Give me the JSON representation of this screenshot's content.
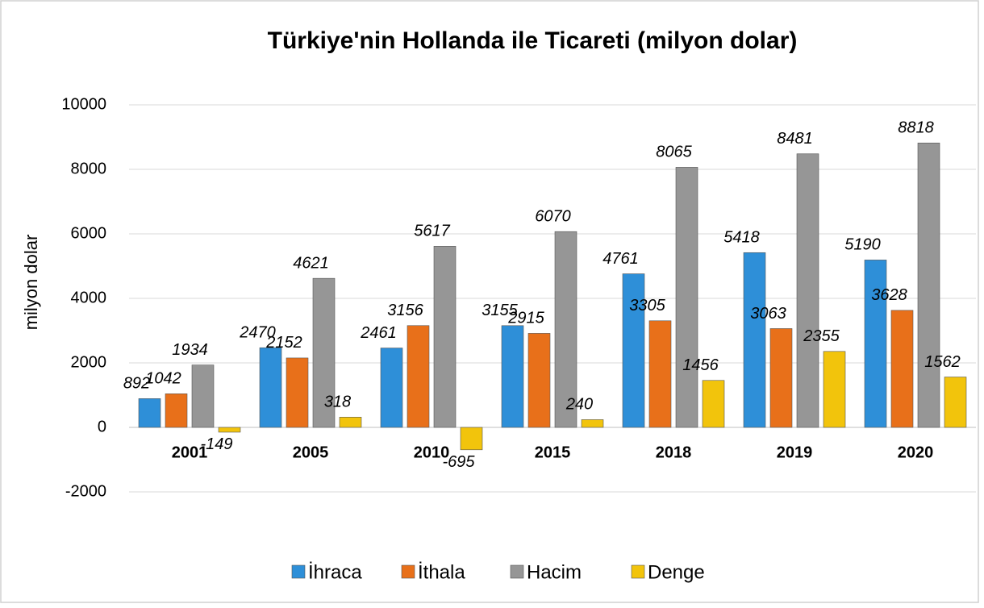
{
  "chart_data": {
    "type": "bar",
    "title": "Türkiye'nin Hollanda ile Ticareti (milyon dolar)",
    "y_axis_label": "milyon dolar",
    "categories": [
      "2001",
      "2005",
      "2010",
      "2015",
      "2018",
      "2019",
      "2020"
    ],
    "series": [
      {
        "name": "İhraca",
        "color": "#2e8fd8",
        "values": [
          892,
          2470,
          2461,
          3155,
          4761,
          5418,
          5190
        ]
      },
      {
        "name": "İthala",
        "color": "#e8701a",
        "values": [
          1042,
          2152,
          3156,
          2915,
          3305,
          3063,
          3628
        ]
      },
      {
        "name": "Hacim",
        "color": "#969696",
        "values": [
          1934,
          4621,
          5617,
          6070,
          8065,
          8481,
          8818
        ]
      },
      {
        "name": "Denge",
        "color": "#f2c40c",
        "values": [
          -149,
          318,
          -695,
          240,
          1456,
          2355,
          1562
        ]
      }
    ],
    "ylim": [
      -2000,
      10000
    ],
    "yticks": [
      -2000,
      0,
      2000,
      4000,
      6000,
      8000,
      10000
    ],
    "grid": true,
    "legend": "bottom"
  }
}
